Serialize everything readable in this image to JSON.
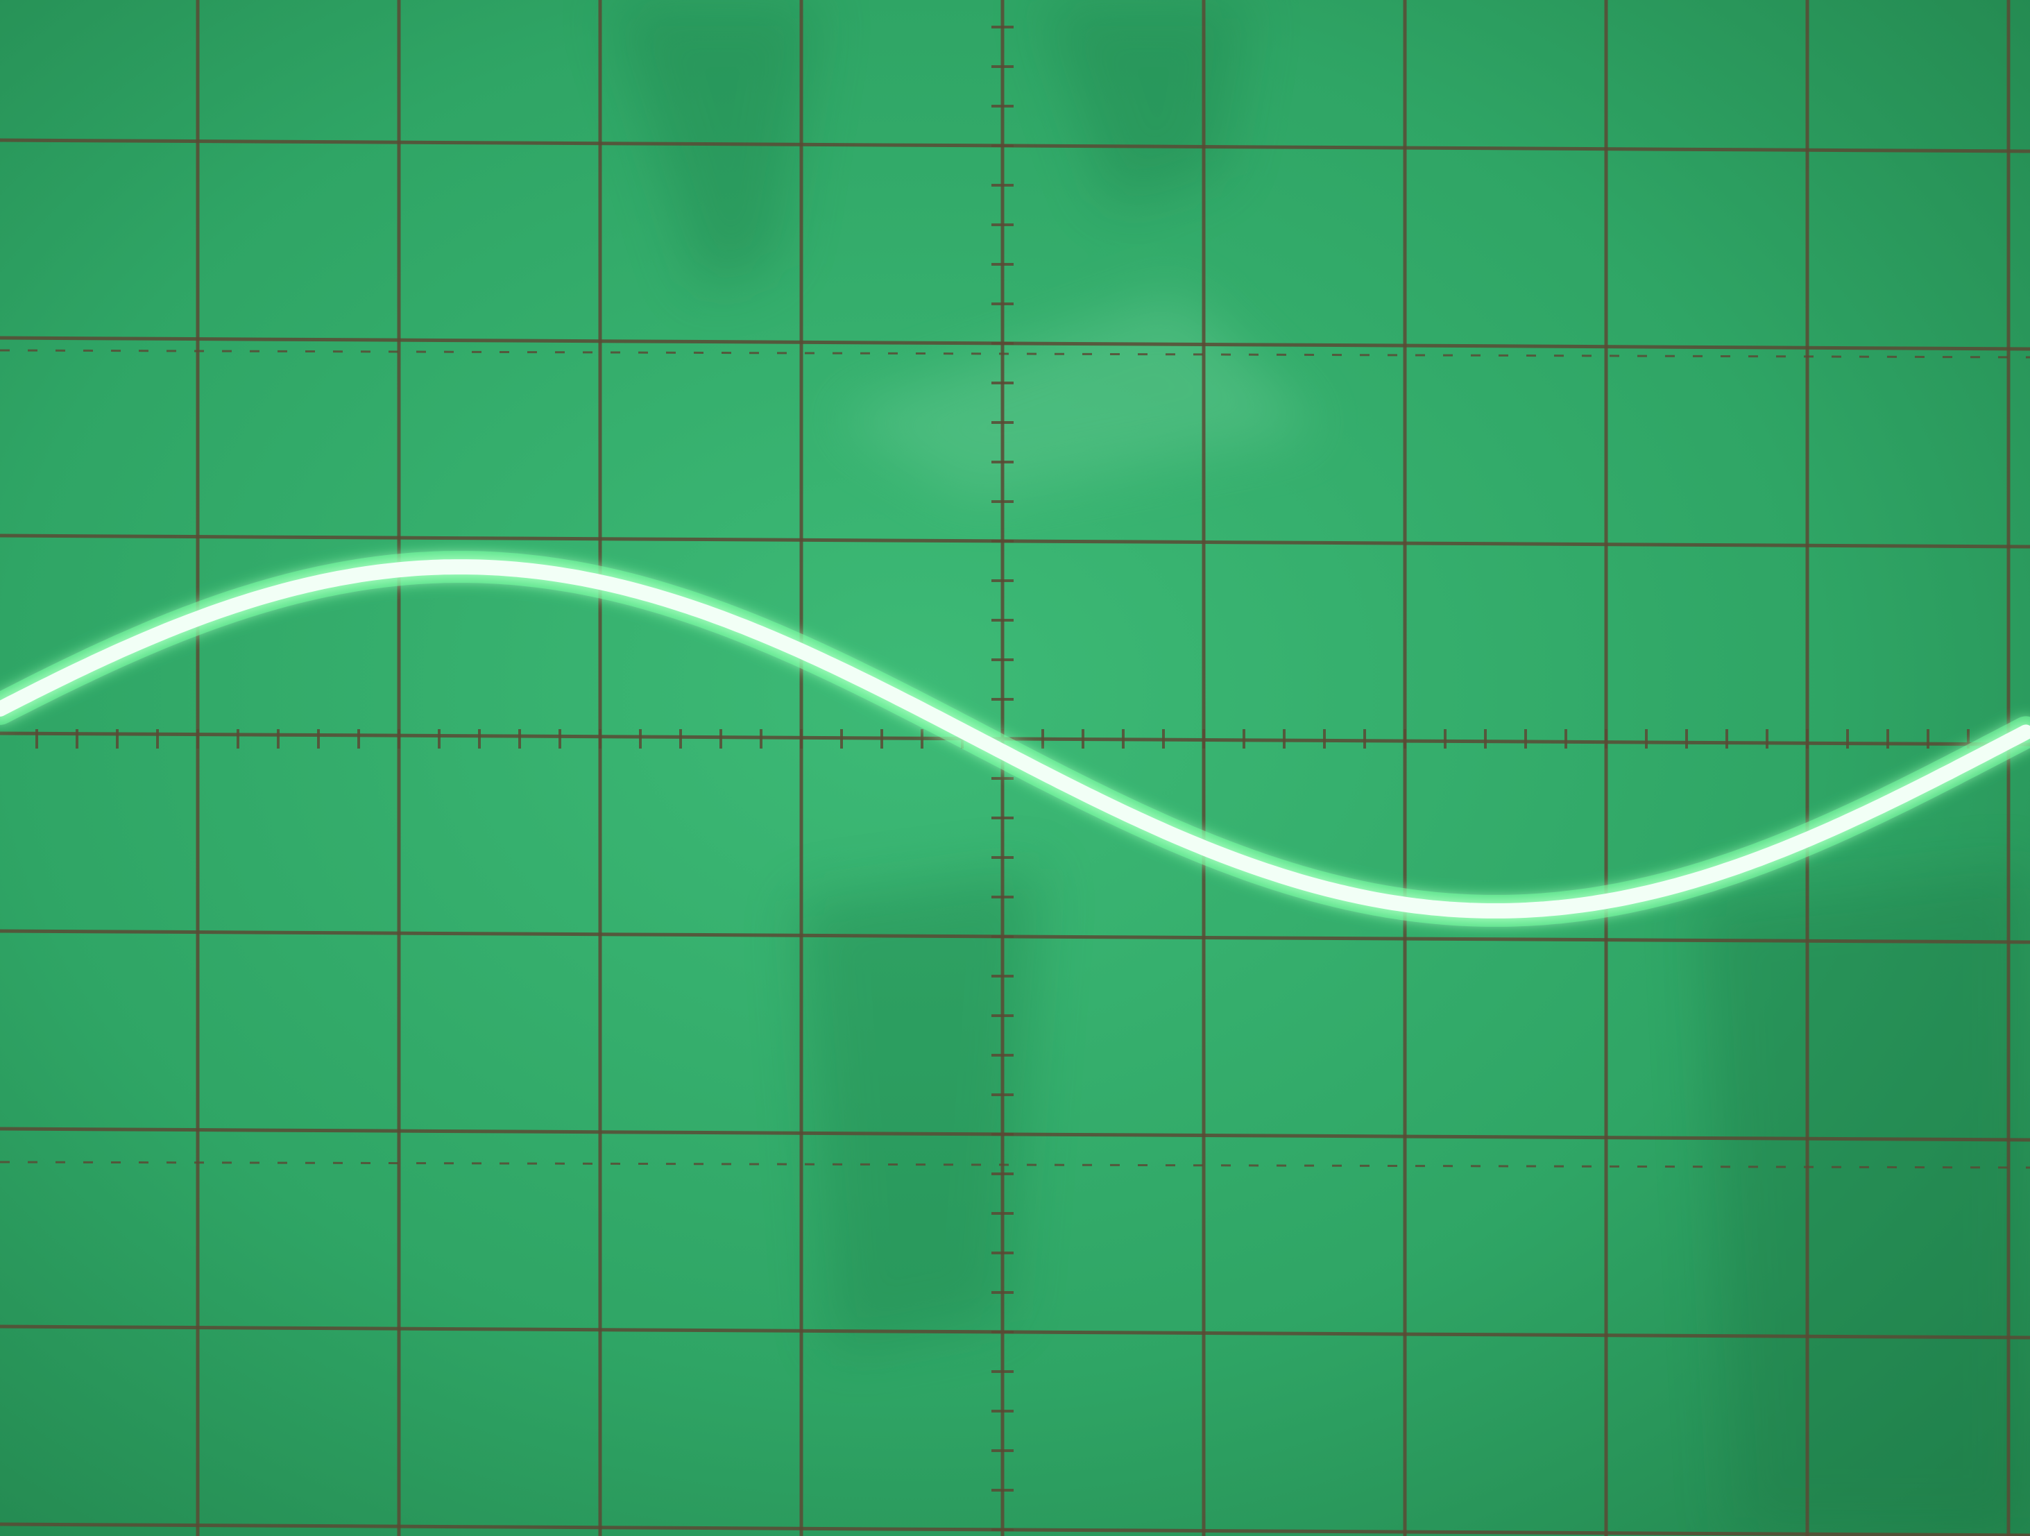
{
  "screen": {
    "phosphor_color": "#34b26d",
    "phosphor_shadow": "#228a54",
    "reflection_color": "#5fc58d",
    "graticule_color": "#5a4a34",
    "trace_color": "#f2fff6",
    "trace_glow": "#6dff9c"
  },
  "graticule": {
    "major_divisions_horizontal": 10,
    "major_divisions_vertical": 8,
    "minor_ticks_per_division": 5
  },
  "trace": {
    "waveform": "sine",
    "cycles_visible": 1,
    "amplitude_divisions": 0.87,
    "offset_divisions": 0.0,
    "phase_degrees": 10
  }
}
